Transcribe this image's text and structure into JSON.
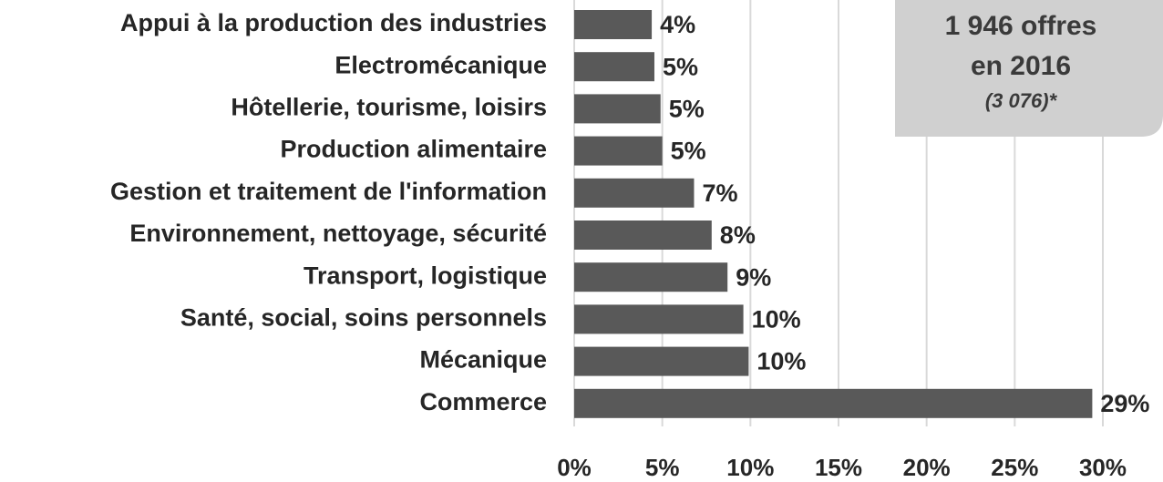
{
  "chart_data": {
    "type": "barh",
    "categories": [
      "Appui à la production des industries",
      "Electromécanique",
      "Hôtellerie, tourisme, loisirs",
      "Production alimentaire",
      "Gestion et traitement de l'information",
      "Environnement, nettoyage, sécurité",
      "Transport, logistique",
      "Santé, social, soins personnels",
      "Mécanique",
      "Commerce"
    ],
    "values": [
      4.4,
      4.55,
      4.9,
      5.0,
      6.8,
      7.8,
      8.7,
      9.6,
      9.9,
      29.4
    ],
    "value_labels": [
      "4%",
      "5%",
      "5%",
      "5%",
      "7%",
      "8%",
      "9%",
      "10%",
      "10%",
      "29%"
    ],
    "color": "#595959",
    "xlim": [
      0,
      30
    ],
    "xticks": [
      {
        "value": 0,
        "label": "0%"
      },
      {
        "value": 5,
        "label": "5%"
      },
      {
        "value": 10,
        "label": "10%"
      },
      {
        "value": 15,
        "label": "15%"
      },
      {
        "value": 20,
        "label": "20%"
      },
      {
        "value": 25,
        "label": "25%"
      },
      {
        "value": 30,
        "label": "30%"
      }
    ],
    "grid": true,
    "annotation": {
      "line1": "1 946 offres",
      "line2": "en 2016",
      "line3": "(3 076)*"
    }
  }
}
